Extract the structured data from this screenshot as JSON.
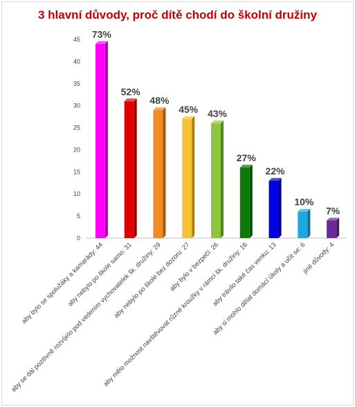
{
  "chart_data": {
    "type": "bar",
    "title": "3 hlavní důvody, proč dítě chodí do školní družiny",
    "xlabel": "",
    "ylabel": "",
    "ylim": [
      0,
      45
    ],
    "yticks": [
      0,
      5,
      10,
      15,
      20,
      25,
      30,
      35,
      40,
      45
    ],
    "grid": false,
    "legend": "none",
    "categories": [
      "aby bylo se spolužáky a kamarády: 44",
      "aby nebylo po škole samo: 31",
      "aby se dál pozitivně rozvíjelo pod vedením vychovatelek šk. družiny: 29",
      "aby nebylo po škole bez dozoru: 27",
      "aby bylo v bezpečí: 26",
      "aby mělo možnost navštěvovat různé kroužky v rámci šk. družiny: 16",
      "aby trávilo také čas venku: 13",
      "aby si mohlo dělat domácí úkoly a učit se: 6",
      "jiné důvody: 4"
    ],
    "values": [
      44,
      31,
      29,
      27,
      26,
      16,
      13,
      6,
      4
    ],
    "data_labels": [
      "73%",
      "52%",
      "48%",
      "45%",
      "43%",
      "27%",
      "22%",
      "10%",
      "7%"
    ],
    "colors": [
      "#ff00ff",
      "#e00000",
      "#f08a24",
      "#f5c232",
      "#8cc63f",
      "#0a7a0a",
      "#0000e0",
      "#1ea8e0",
      "#6a2a9a"
    ]
  }
}
